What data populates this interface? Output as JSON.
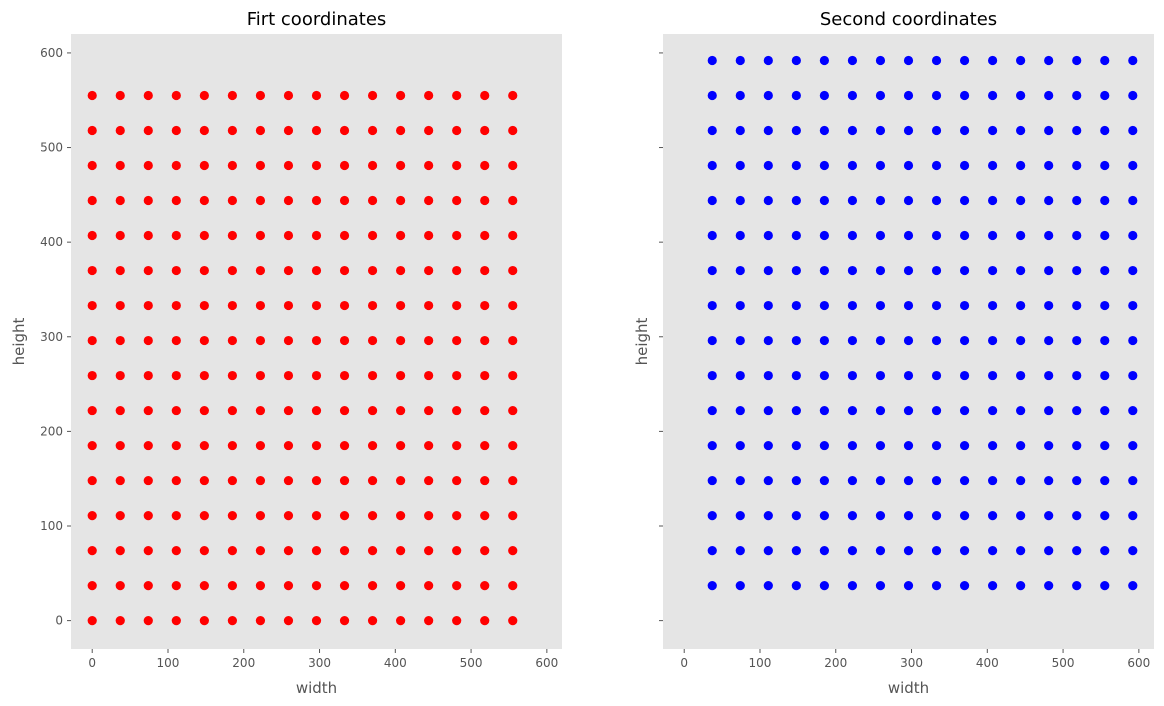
{
  "chart_data": [
    {
      "type": "scatter",
      "title": "Firt coordinates",
      "xlabel": "width",
      "ylabel": "height",
      "xlim": [
        -28,
        620
      ],
      "ylim": [
        -30,
        620
      ],
      "xticks": [
        0,
        100,
        200,
        300,
        400,
        500,
        600
      ],
      "yticks": [
        0,
        100,
        200,
        300,
        400,
        500,
        600
      ],
      "show_ytick_labels": true,
      "grid": false,
      "background": "#e5e5e5",
      "color": "#ff0000",
      "x_values": [
        0,
        37,
        74,
        111,
        148,
        185,
        222,
        259,
        296,
        333,
        370,
        407,
        444,
        481,
        518,
        555
      ],
      "y_values": [
        0,
        37,
        74,
        111,
        148,
        185,
        222,
        259,
        296,
        333,
        370,
        407,
        444,
        481,
        518,
        555
      ]
    },
    {
      "type": "scatter",
      "title": "Second coordinates",
      "xlabel": "width",
      "ylabel": "height",
      "xlim": [
        -28,
        620
      ],
      "ylim": [
        -30,
        620
      ],
      "xticks": [
        0,
        100,
        200,
        300,
        400,
        500,
        600
      ],
      "yticks": [
        0,
        100,
        200,
        300,
        400,
        500,
        600
      ],
      "show_ytick_labels": false,
      "grid": false,
      "background": "#e5e5e5",
      "color": "#0000ff",
      "x_values": [
        37,
        74,
        111,
        148,
        185,
        222,
        259,
        296,
        333,
        370,
        407,
        444,
        481,
        518,
        555,
        592
      ],
      "y_values": [
        37,
        74,
        111,
        148,
        185,
        222,
        259,
        296,
        333,
        370,
        407,
        444,
        481,
        518,
        555,
        592
      ]
    }
  ]
}
